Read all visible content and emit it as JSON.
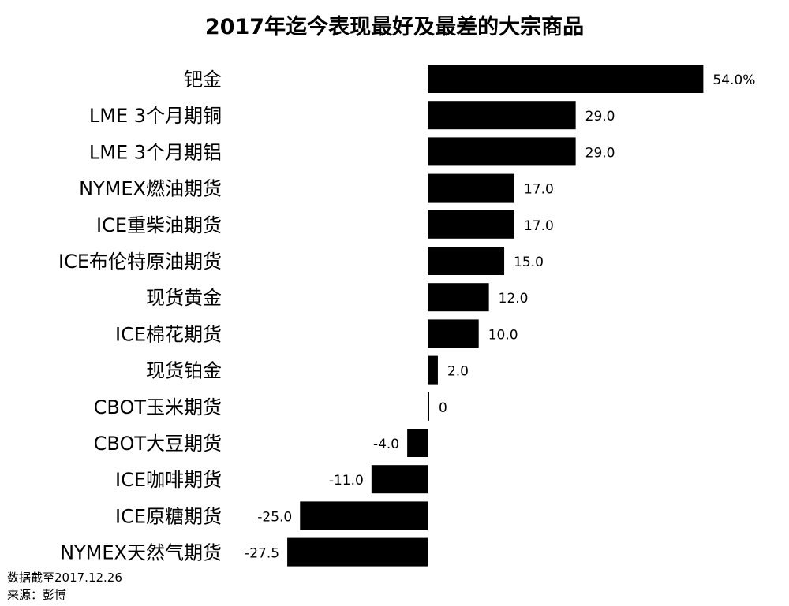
{
  "chart_data": {
    "type": "bar",
    "orientation": "horizontal",
    "title": "2017年迄今表现最好及最差的大宗商品",
    "xlabel": "",
    "ylabel": "",
    "grid": false,
    "legend": "none",
    "bar_color": "#000000",
    "xlim": [
      -27.5,
      54.0
    ],
    "categories": [
      "钯金",
      "LME 3个月期铜",
      "LME 3个月期铝",
      "NYMEX燃油期货",
      "ICE重柴油期货",
      "ICE布伦特原油期货",
      "现货黄金",
      "ICE棉花期货",
      "现货铂金",
      "CBOT玉米期货",
      "CBOT大豆期货",
      "ICE咖啡期货",
      "ICE原糖期货",
      "NYMEX天然气期货"
    ],
    "values": [
      54.0,
      29.0,
      29.0,
      17.0,
      17.0,
      15.0,
      12.0,
      10.0,
      2.0,
      0,
      -4.0,
      -11.0,
      -25.0,
      -27.5
    ],
    "value_labels": [
      "54.0%",
      "29.0",
      "29.0",
      "17.0",
      "17.0",
      "15.0",
      "12.0",
      "10.0",
      "2.0",
      "0",
      "-4.0",
      "-11.0",
      "-25.0",
      "-27.5"
    ]
  },
  "notes": {
    "date": "数据截至2017.12.26",
    "source": "来源：彭博"
  }
}
